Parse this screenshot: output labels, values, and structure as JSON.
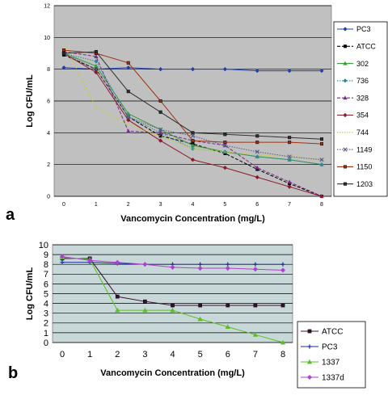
{
  "chart_data": [
    {
      "panel_label": "a",
      "type": "line",
      "xlabel": "Vancomycin Concentration (mg/L)",
      "ylabel": "Log CFU/mL",
      "x": [
        0,
        1,
        2,
        3,
        4,
        5,
        6,
        7,
        8
      ],
      "x_tick_labels": [
        "0",
        "1",
        "2",
        "3",
        "4",
        "5",
        "6",
        "7",
        "8"
      ],
      "y_tick_labels": [
        "0",
        "2",
        "4",
        "6",
        "8",
        "10",
        "12"
      ],
      "ylim": [
        0,
        12
      ],
      "grid": "horizontal",
      "legend": "right",
      "background": "#c0c0c0",
      "series": [
        {
          "name": "PC3",
          "color": "#1f3fb0",
          "dash": "solid",
          "marker": "diamond",
          "values": [
            8.1,
            8.0,
            8.1,
            8.0,
            8.0,
            8.0,
            7.9,
            7.9,
            7.9
          ]
        },
        {
          "name": "ATCC",
          "color": "#000000",
          "dash": "dashed",
          "marker": "square",
          "values": [
            8.9,
            8.0,
            5.0,
            3.8,
            3.3,
            2.7,
            1.7,
            0.8,
            0.0
          ]
        },
        {
          "name": "302",
          "color": "#3a9a3a",
          "dash": "solid",
          "marker": "triangle",
          "values": [
            9.0,
            8.2,
            5.2,
            4.2,
            3.2,
            2.8,
            2.5,
            2.3,
            2.0
          ]
        },
        {
          "name": "736",
          "color": "#2a8a9a",
          "dash": "dotted",
          "marker": "diamond",
          "values": [
            9.0,
            8.5,
            5.0,
            4.0,
            3.0,
            2.8,
            2.5,
            2.3,
            2.0
          ]
        },
        {
          "name": "328",
          "color": "#7a2a8a",
          "dash": "dashed",
          "marker": "triangle",
          "values": [
            9.1,
            8.8,
            4.1,
            4.0,
            3.5,
            3.2,
            1.8,
            0.9,
            0.0
          ]
        },
        {
          "name": "354",
          "color": "#8a1a2a",
          "dash": "solid",
          "marker": "diamond",
          "values": [
            9.0,
            7.8,
            4.8,
            3.5,
            2.3,
            1.8,
            1.2,
            0.6,
            0.0
          ]
        },
        {
          "name": "744",
          "color": "#c8d020",
          "dash": "dotted",
          "marker": "none",
          "values": [
            9.6,
            5.6,
            4.5,
            3.8,
            3.0,
            2.8,
            2.6,
            2.5,
            2.3
          ]
        },
        {
          "name": "1149",
          "color": "#5a5a8a",
          "dash": "dotted",
          "marker": "x",
          "values": [
            9.0,
            8.0,
            5.0,
            4.2,
            3.8,
            3.2,
            2.8,
            2.5,
            2.3
          ]
        },
        {
          "name": "1150",
          "color": "#a03010",
          "dash": "solid",
          "marker": "square",
          "values": [
            9.2,
            9.0,
            8.4,
            6.0,
            3.5,
            3.4,
            3.4,
            3.4,
            3.3
          ]
        },
        {
          "name": "1203",
          "color": "#303030",
          "dash": "solid",
          "marker": "square",
          "values": [
            9.0,
            9.1,
            6.6,
            5.3,
            4.0,
            3.9,
            3.8,
            3.7,
            3.6
          ]
        }
      ]
    },
    {
      "panel_label": "b",
      "type": "line",
      "xlabel": "Vancomycin Concentration (mg/L)",
      "ylabel": "Log CFU/mL",
      "x": [
        0,
        1,
        2,
        3,
        4,
        5,
        6,
        7,
        8
      ],
      "x_tick_labels": [
        "0",
        "1",
        "2",
        "3",
        "4",
        "5",
        "6",
        "7",
        "8"
      ],
      "y_tick_labels": [
        "0",
        "1",
        "2",
        "3",
        "4",
        "5",
        "6",
        "7",
        "8",
        "9",
        "10"
      ],
      "ylim": [
        0,
        10
      ],
      "grid": "horizontal",
      "legend": "right",
      "background": "#c8d8d8",
      "series": [
        {
          "name": "ATCC",
          "color": "#3a1030",
          "dash": "solid",
          "marker": "square",
          "values": [
            8.6,
            8.6,
            4.7,
            4.2,
            3.8,
            3.8,
            3.8,
            3.8,
            3.8
          ]
        },
        {
          "name": "PC3",
          "color": "#1a2aa0",
          "dash": "solid",
          "marker": "plus",
          "values": [
            8.2,
            8.2,
            8.1,
            8.0,
            8.0,
            8.0,
            8.0,
            8.0,
            8.0
          ]
        },
        {
          "name": "1337",
          "color": "#58c020",
          "dash": "solid",
          "marker": "triangle",
          "values": [
            8.7,
            8.5,
            3.3,
            3.3,
            3.3,
            2.4,
            1.6,
            0.8,
            0.0
          ]
        },
        {
          "name": "1337d",
          "color": "#b040d0",
          "dash": "solid",
          "marker": "diamond",
          "values": [
            8.8,
            8.4,
            8.2,
            8.0,
            7.7,
            7.6,
            7.6,
            7.5,
            7.4
          ]
        }
      ]
    }
  ]
}
